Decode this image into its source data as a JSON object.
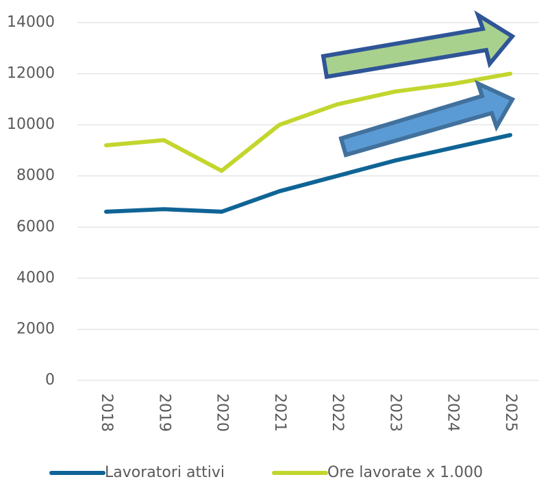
{
  "chart_data": {
    "type": "line",
    "categories": [
      "2018",
      "2019",
      "2020",
      "2021",
      "2022",
      "2023",
      "2024",
      "2025"
    ],
    "series": [
      {
        "name": "Lavoratori attivi",
        "color": "#0f6496",
        "values": [
          6600,
          6700,
          6600,
          7400,
          8000,
          8600,
          9100,
          9600
        ]
      },
      {
        "name": "Ore lavorate x 1.000",
        "color": "#c2d62e",
        "values": [
          9200,
          9400,
          8200,
          10000,
          10800,
          11300,
          11600,
          12000
        ]
      }
    ],
    "ylim": [
      0,
      14000
    ],
    "yticks": [
      0,
      2000,
      4000,
      6000,
      8000,
      10000,
      12000,
      14000
    ],
    "grid": true
  }
}
